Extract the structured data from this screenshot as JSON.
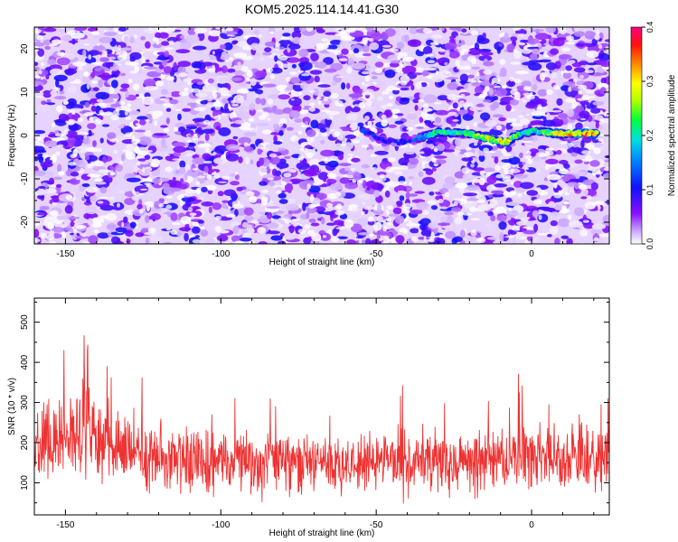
{
  "title": "KOM5.2025.114.14.41.G30",
  "colors": {
    "line": "#ee3333",
    "axis": "#000000",
    "background": "#ffffff"
  },
  "chart_data": [
    {
      "type": "heatmap",
      "title": "KOM5.2025.114.14.41.G30",
      "xlabel": "Height of straight line (km)",
      "ylabel": "Frequency (Hz)",
      "xlim": [
        -160,
        25
      ],
      "ylim": [
        -25,
        25
      ],
      "xticks": [
        -150,
        -100,
        -50,
        0
      ],
      "xtick_labels": [
        "-150",
        "-100",
        "-50",
        "0"
      ],
      "yticks": [
        -20,
        -10,
        0,
        10,
        20
      ],
      "ytick_labels": [
        "-20",
        "-10",
        "0",
        "10",
        "20"
      ],
      "colormap": [
        "#ffffff",
        "#8800ff",
        "#0000ff",
        "#00ffff",
        "#00ff00",
        "#ffff00",
        "#ff8800",
        "#ff0000",
        "#ff0080"
      ],
      "colorbar": {
        "label": "Normalized spectral amplitude",
        "range": [
          0,
          0.4
        ],
        "ticks": [
          0,
          0.1,
          0.2,
          0.3,
          0.4
        ],
        "tick_labels": [
          "0.0",
          "0.1",
          "0.2",
          "0.3",
          "0.4"
        ]
      },
      "noise_amplitude_range": [
        0.0,
        0.1
      ],
      "signal_track": {
        "description_points": [
          {
            "x": -55,
            "f": 1.5,
            "amp": 0.12
          },
          {
            "x": -47,
            "f": -1.5,
            "amp": 0.1
          },
          {
            "x": -40,
            "f": -1.5,
            "amp": 0.1
          },
          {
            "x": -30,
            "f": 0.8,
            "amp": 0.22
          },
          {
            "x": -20,
            "f": 0.5,
            "amp": 0.22
          },
          {
            "x": -13,
            "f": -1.0,
            "amp": 0.28
          },
          {
            "x": -8,
            "f": -1.5,
            "amp": 0.3
          },
          {
            "x": -5,
            "f": 0.0,
            "amp": 0.22
          },
          {
            "x": 0,
            "f": 1.0,
            "amp": 0.2
          },
          {
            "x": 8,
            "f": 0.5,
            "amp": 0.27
          },
          {
            "x": 13,
            "f": 0.5,
            "amp": 0.32
          },
          {
            "x": 17,
            "f": 0.5,
            "amp": 0.35
          },
          {
            "x": 21,
            "f": 0.5,
            "amp": 0.3
          }
        ]
      }
    },
    {
      "type": "line",
      "xlabel": "Height of straight line (km)",
      "ylabel": "SNR (10 * v/v)",
      "xlim": [
        -160,
        25
      ],
      "ylim": [
        20,
        560
      ],
      "xticks": [
        -150,
        -100,
        -50,
        0
      ],
      "xtick_labels": [
        "-150",
        "-100",
        "-50",
        "0"
      ],
      "yticks": [
        100,
        200,
        300,
        400,
        500
      ],
      "ytick_labels": [
        "100",
        "200",
        "300",
        "400",
        "500"
      ],
      "color": "#ee3333",
      "series": [
        {
          "x_start": -160,
          "x_end": 25,
          "n_points": 1400,
          "envelope": [
            {
              "x": -160,
              "low": 60,
              "high": 330,
              "peak": 380
            },
            {
              "x": -150,
              "low": 60,
              "high": 350,
              "peak": 500
            },
            {
              "x": -145,
              "low": 60,
              "high": 420,
              "peak": 500
            },
            {
              "x": -141,
              "low": 60,
              "high": 420,
              "peak": 560
            },
            {
              "x": -135,
              "low": 50,
              "high": 330,
              "peak": 390
            },
            {
              "x": -120,
              "low": 40,
              "high": 300,
              "peak": 380
            },
            {
              "x": -100,
              "low": 40,
              "high": 260,
              "peak": 330
            },
            {
              "x": -80,
              "low": 40,
              "high": 260,
              "peak": 350
            },
            {
              "x": -60,
              "low": 40,
              "high": 250,
              "peak": 300
            },
            {
              "x": -50,
              "low": 40,
              "high": 280,
              "peak": 390
            },
            {
              "x": -30,
              "low": 40,
              "high": 270,
              "peak": 310
            },
            {
              "x": -10,
              "low": 40,
              "high": 280,
              "peak": 370
            },
            {
              "x": 5,
              "low": 40,
              "high": 290,
              "peak": 410
            },
            {
              "x": 15,
              "low": 40,
              "high": 300,
              "peak": 360
            },
            {
              "x": 25,
              "low": 40,
              "high": 290,
              "peak": 320
            }
          ]
        }
      ]
    }
  ]
}
